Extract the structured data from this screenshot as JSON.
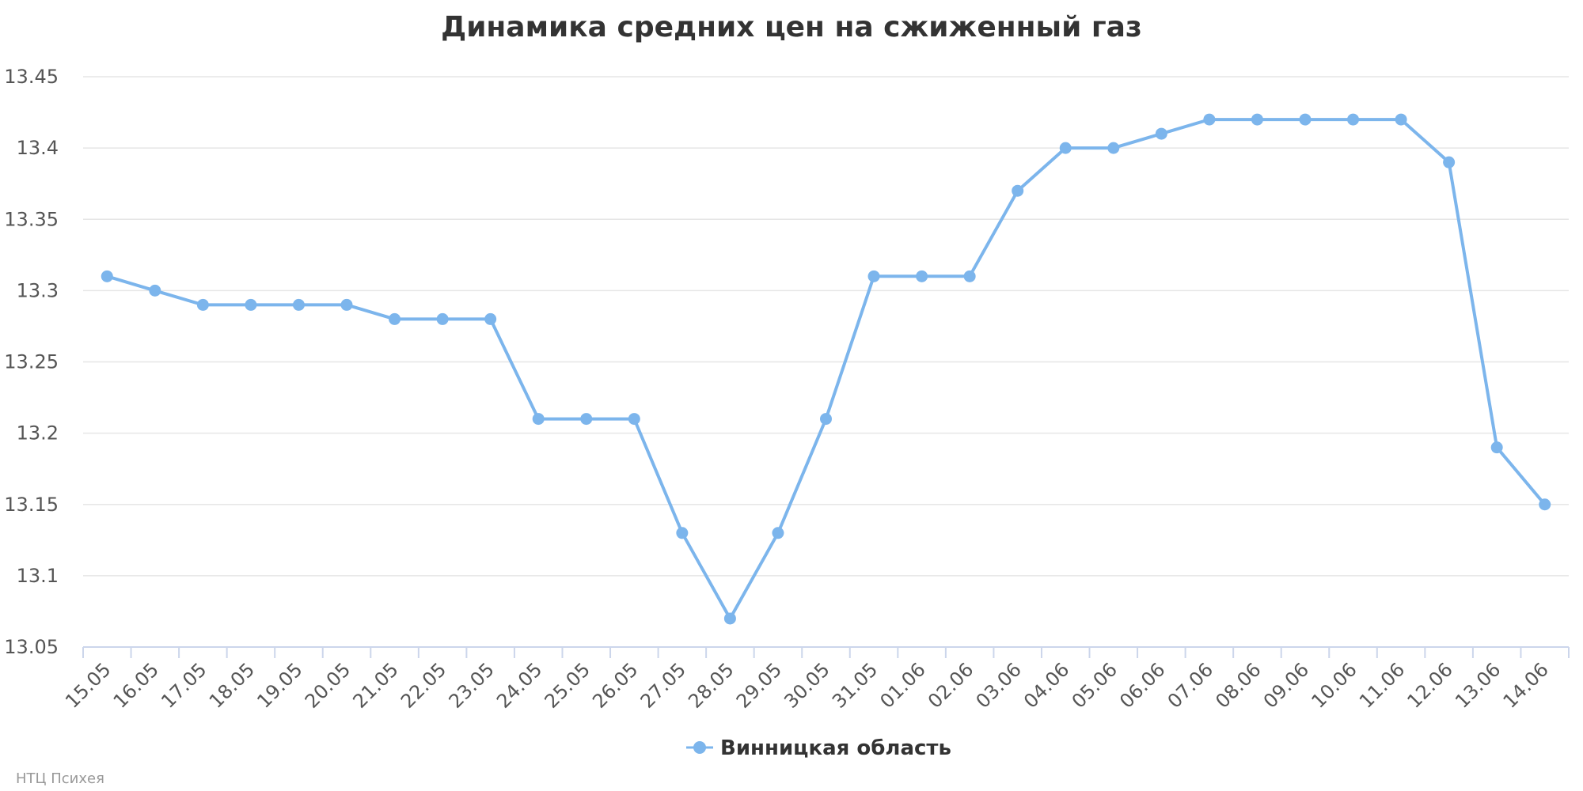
{
  "chart_data": {
    "type": "line",
    "title": "Динамика средних цен на сжиженный газ",
    "xlabel": "",
    "ylabel": "",
    "categories": [
      "15.05",
      "16.05",
      "17.05",
      "18.05",
      "19.05",
      "20.05",
      "21.05",
      "22.05",
      "23.05",
      "24.05",
      "25.05",
      "26.05",
      "27.05",
      "28.05",
      "29.05",
      "30.05",
      "31.05",
      "01.06",
      "02.06",
      "03.06",
      "04.06",
      "05.06",
      "06.06",
      "07.06",
      "08.06",
      "09.06",
      "10.06",
      "11.06",
      "12.06",
      "13.06",
      "14.06"
    ],
    "series": [
      {
        "name": "Винницкая область",
        "color": "#7cb5ec",
        "values": [
          13.31,
          13.3,
          13.29,
          13.29,
          13.29,
          13.29,
          13.28,
          13.28,
          13.28,
          13.21,
          13.21,
          13.21,
          13.13,
          13.07,
          13.13,
          13.21,
          13.31,
          13.31,
          13.31,
          13.37,
          13.4,
          13.4,
          13.41,
          13.42,
          13.42,
          13.42,
          13.42,
          13.42,
          13.39,
          13.19,
          13.15
        ]
      }
    ],
    "ylim": [
      13.05,
      13.45
    ],
    "yticks": [
      "13.05",
      "13.1",
      "13.15",
      "13.2",
      "13.25",
      "13.3",
      "13.35",
      "13.4",
      "13.45"
    ],
    "grid": true,
    "legend_position": "bottom-center"
  },
  "credit": "НТЦ Психея"
}
